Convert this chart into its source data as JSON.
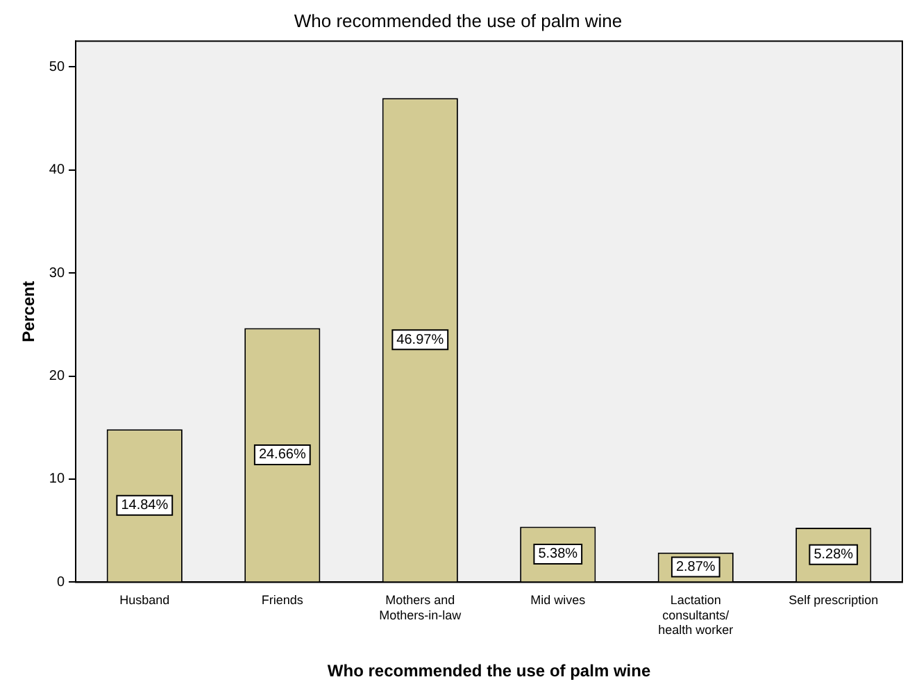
{
  "chart_data": {
    "type": "bar",
    "title": "Who recommended the use of palm wine",
    "xlabel": "Who recommended the use of palm wine",
    "ylabel": "Percent",
    "categories": [
      "Husband",
      "Friends",
      "Mothers and Mothers-in-law",
      "Mid wives",
      "Lactation consultants/ health worker",
      "Self prescription"
    ],
    "values": [
      14.84,
      24.66,
      46.97,
      5.38,
      2.87,
      5.28
    ],
    "value_labels": [
      "14.84%",
      "24.66%",
      "46.97%",
      "5.38%",
      "2.87%",
      "5.28%"
    ],
    "color": "#d3cb93",
    "ylim": [
      0,
      52.5
    ],
    "yticks": [
      0,
      10,
      20,
      30,
      40,
      50
    ],
    "grid": false,
    "legend": false
  }
}
